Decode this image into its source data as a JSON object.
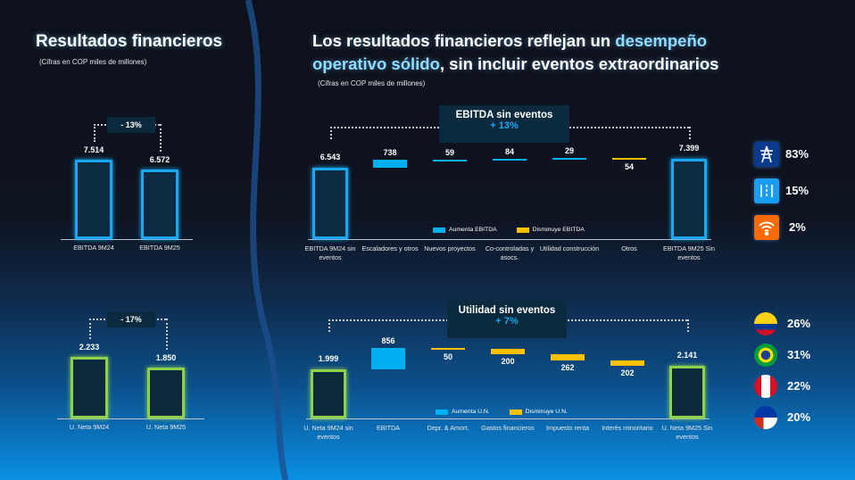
{
  "left": {
    "title": "Resultados financieros",
    "subtitle": "(Cifras en COP miles de millones)"
  },
  "main": {
    "title_a": "Los resultados financieros reflejan un ",
    "title_hl1": "desempeño",
    "title_hl2": "operativo sólido",
    "title_b": ", sin incluir eventos extraordinarios",
    "subtitle": "(Cifras en COP miles de millones)"
  },
  "ebitda_compare": {
    "change": "- 13%",
    "bars": [
      {
        "label": "EBITDA 9M24",
        "value": "7.514"
      },
      {
        "label": "EBITDA 9M25",
        "value": "6.572"
      }
    ]
  },
  "net_compare": {
    "change": "- 17%",
    "bars": [
      {
        "label": "U. Neta 9M24",
        "value": "2.233"
      },
      {
        "label": "U. Neta 9M25",
        "value": "1.850"
      }
    ]
  },
  "ebitda_waterfall": {
    "title": "EBITDA sin eventos",
    "change": "+ 13%",
    "legend_up": "Aumenta EBITDA",
    "legend_down": "Disminuye EBITDA",
    "steps": [
      {
        "label": "EBITDA 9M24 sin eventos",
        "value": "6.543",
        "kind": "total"
      },
      {
        "label": "Escaladores y otros",
        "value": "738",
        "kind": "inc"
      },
      {
        "label": "Nuevos proyectos",
        "value": "59",
        "kind": "inc"
      },
      {
        "label": "Co-controladas y asocs.",
        "value": "84",
        "kind": "inc"
      },
      {
        "label": "Utilidad construcción",
        "value": "29",
        "kind": "inc"
      },
      {
        "label": "Otros",
        "value": "54",
        "kind": "dec"
      },
      {
        "label": "EBITDA 9M25 Sin eventos",
        "value": "7.399",
        "kind": "total"
      }
    ]
  },
  "net_waterfall": {
    "title": "Utilidad sin eventos",
    "change": "+ 7%",
    "legend_up": "Aumenta U.N.",
    "legend_down": "Disminuye U.N.",
    "steps": [
      {
        "label": "U. Neta 9M24 sin eventos",
        "value": "1.999",
        "kind": "total"
      },
      {
        "label": "EBITDA",
        "value": "856",
        "kind": "inc"
      },
      {
        "label": "Depr. & Amort.",
        "value": "50",
        "kind": "dec"
      },
      {
        "label": "Gastos financieros",
        "value": "200",
        "kind": "dec"
      },
      {
        "label": "Impuesto renta",
        "value": "262",
        "kind": "dec"
      },
      {
        "label": "Interés minoritario",
        "value": "202",
        "kind": "dec"
      },
      {
        "label": "U. Neta 9M25 Sin eventos",
        "value": "2.141",
        "kind": "total"
      }
    ]
  },
  "segments": [
    {
      "icon": "transmission-tower-icon",
      "pct": "83%",
      "color": "#0a3a8c"
    },
    {
      "icon": "road-icon",
      "pct": "15%",
      "color": "#1a9cf0"
    },
    {
      "icon": "wifi-icon",
      "pct": "2%",
      "color": "#ff6a00"
    }
  ],
  "countries": [
    {
      "icon": "colombia-flag-icon",
      "pct": "26%"
    },
    {
      "icon": "brazil-flag-icon",
      "pct": "31%"
    },
    {
      "icon": "peru-flag-icon",
      "pct": "22%"
    },
    {
      "icon": "chile-flag-icon",
      "pct": "20%"
    }
  ],
  "colors": {
    "increase": "#00b0f0",
    "decrease": "#ffc000",
    "ebitda_total": "#19a8f0",
    "net_total": "#8ed14e"
  }
}
